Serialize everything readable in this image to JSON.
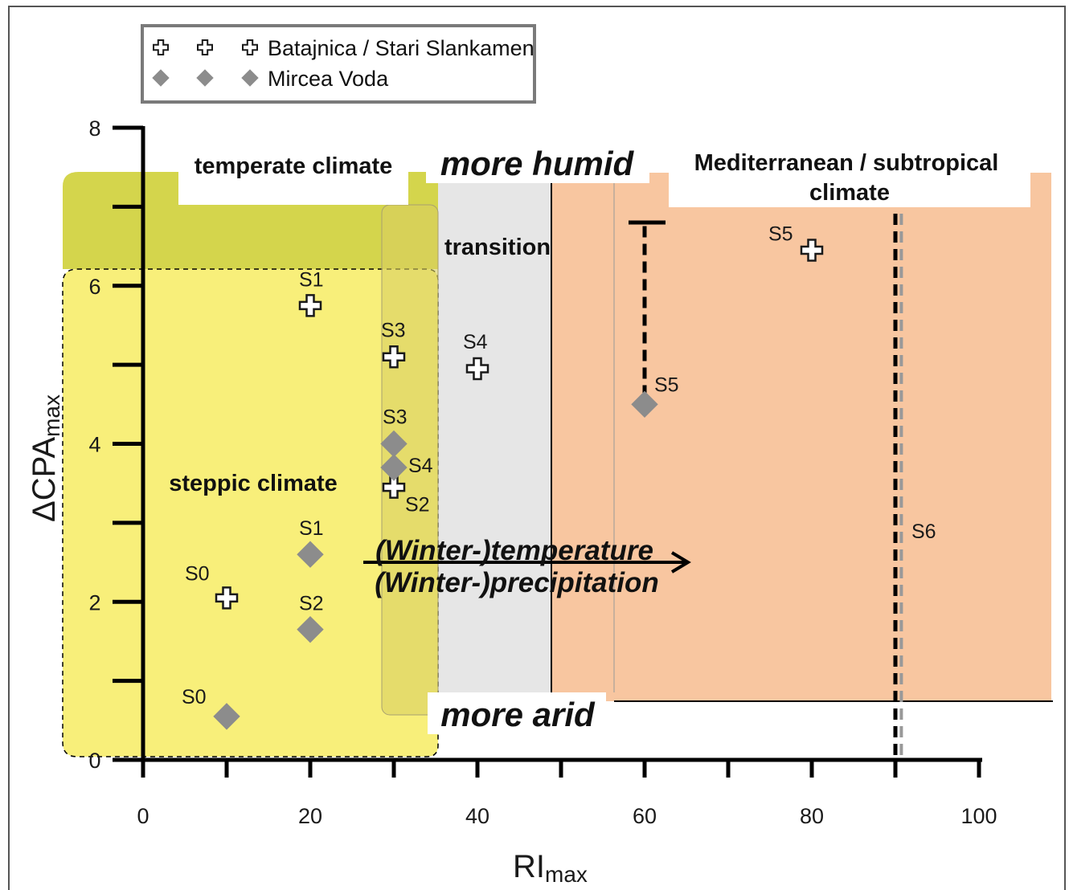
{
  "chart_data": {
    "type": "scatter",
    "xlabel": "RI",
    "xlabel_sub": "max",
    "ylabel": "ΔCPA",
    "ylabel_sub": "max",
    "xlim": [
      0,
      100
    ],
    "ylim": [
      0,
      8
    ],
    "x_ticks": [
      0,
      20,
      40,
      60,
      80,
      100
    ],
    "y_ticks": [
      0,
      2,
      4,
      6,
      8
    ],
    "grid": false,
    "legend_position": "top-left",
    "legend": [
      {
        "label": "Batajnica / Stari Slankamen",
        "marker": "open-cross"
      },
      {
        "label": "Mircea Voda",
        "marker": "gray-diamond"
      }
    ],
    "series": [
      {
        "name": "Batajnica / Stari Slankamen",
        "marker": "open-cross",
        "points": [
          {
            "label": "S0",
            "x": 10,
            "y": 2.05
          },
          {
            "label": "S1",
            "x": 20,
            "y": 5.75
          },
          {
            "label": "S2",
            "x": 30,
            "y": 3.45
          },
          {
            "label": "S3",
            "x": 30,
            "y": 5.1
          },
          {
            "label": "S4",
            "x": 40,
            "y": 4.95
          },
          {
            "label": "S5",
            "x": 80,
            "y": 6.45
          }
        ]
      },
      {
        "name": "Mircea Voda",
        "marker": "gray-diamond",
        "points": [
          {
            "label": "S0",
            "x": 10,
            "y": 0.55
          },
          {
            "label": "S1",
            "x": 20,
            "y": 2.6
          },
          {
            "label": "S2",
            "x": 20,
            "y": 1.65
          },
          {
            "label": "S3",
            "x": 30,
            "y": 4.0
          },
          {
            "label": "S4",
            "x": 30,
            "y": 3.7
          },
          {
            "label": "S5",
            "x": 60,
            "y": 4.5
          }
        ]
      }
    ],
    "error_bar": {
      "x": 60,
      "y_from": 4.6,
      "y_to": 6.8
    },
    "vertical_lines": [
      {
        "label": "S6",
        "x": 90,
        "color": "#000000"
      },
      {
        "label": "",
        "x": 91,
        "color": "#999999"
      }
    ],
    "regions": [
      {
        "label": "temperate climate",
        "color": "#d4d54c"
      },
      {
        "label": "steppic climate",
        "color": "#f8ef7a"
      },
      {
        "label": "transition",
        "color": "#e8e8e8"
      },
      {
        "label": "Mediterranean / subtropical climate",
        "color": "#f8c6a0"
      }
    ],
    "annotations": {
      "more_humid": "more humid",
      "more_arid": "more arid",
      "arrow_line1": "(Winter-)temperature",
      "arrow_line2": "(Winter-)precipitation"
    }
  }
}
